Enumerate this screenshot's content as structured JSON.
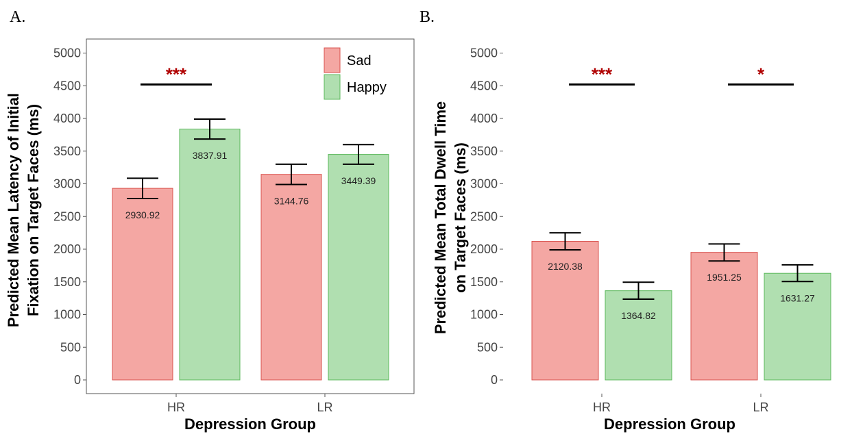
{
  "chart_data": [
    {
      "type": "bar",
      "panel": "A.",
      "categories": [
        "HR",
        "LR"
      ],
      "series": [
        {
          "name": "Sad",
          "values": [
            2930.92,
            3144.76
          ],
          "errors": [
            [
              2775,
              3085
            ],
            [
              2990,
              3300
            ]
          ],
          "color": "#f4a7a3",
          "stroke": "#d9534f"
        },
        {
          "name": "Happy",
          "values": [
            3837.91,
            3449.39
          ],
          "errors": [
            [
              3685,
              3990
            ],
            [
              3300,
              3600
            ]
          ],
          "color": "#b0dfb0",
          "stroke": "#5cb85c"
        }
      ],
      "value_labels": [
        [
          "2930.92",
          "3144.76"
        ],
        [
          "3837.91",
          "3449.39"
        ]
      ],
      "xlabel": "Depression Group",
      "ylabel": [
        "Predicted Mean Latency of Initial",
        "Fixation on Target Faces (ms)"
      ],
      "ylim": [
        0,
        5000
      ],
      "yticks": [
        0,
        500,
        1000,
        1500,
        2000,
        2500,
        3000,
        3500,
        4000,
        4500,
        5000
      ],
      "significance": [
        {
          "category": "HR",
          "label": "***",
          "y": 4520
        }
      ],
      "legend": {
        "position": "top-right",
        "entries": [
          "Sad",
          "Happy"
        ]
      },
      "grid": false,
      "framed": true
    },
    {
      "type": "bar",
      "panel": "B.",
      "categories": [
        "HR",
        "LR"
      ],
      "series": [
        {
          "name": "Sad",
          "values": [
            2120.38,
            1951.25
          ],
          "errors": [
            [
              1990,
              2250
            ],
            [
              1820,
              2080
            ]
          ],
          "color": "#f4a7a3",
          "stroke": "#d9534f"
        },
        {
          "name": "Happy",
          "values": [
            1364.82,
            1631.27
          ],
          "errors": [
            [
              1235,
              1495
            ],
            [
              1505,
              1760
            ]
          ],
          "color": "#b0dfb0",
          "stroke": "#5cb85c"
        }
      ],
      "value_labels": [
        [
          "2120.38",
          "1951.25"
        ],
        [
          "1364.82",
          "1631.27"
        ]
      ],
      "xlabel": "Depression Group",
      "ylabel": [
        "Predicted Mean Total Dwell Time",
        "on Target Faces (ms)"
      ],
      "ylim": [
        0,
        5000
      ],
      "yticks": [
        0,
        500,
        1000,
        1500,
        2000,
        2500,
        3000,
        3500,
        4000,
        4500,
        5000
      ],
      "significance": [
        {
          "category": "HR",
          "label": "***",
          "y": 4520
        },
        {
          "category": "LR",
          "label": "*",
          "y": 4520
        }
      ],
      "legend": null,
      "grid": false,
      "framed": false
    }
  ]
}
